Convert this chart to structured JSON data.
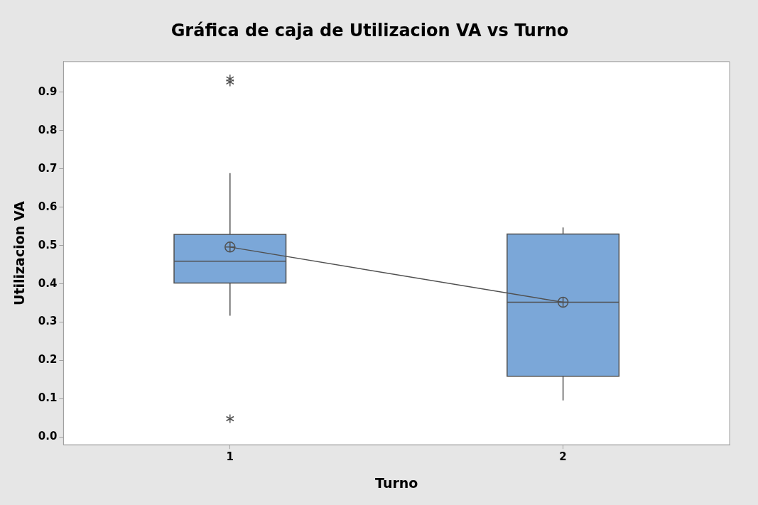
{
  "chart_data": {
    "type": "box",
    "title": "Gráfica de caja de Utilizacion VA vs Turno",
    "xlabel": "Turno",
    "ylabel": "Utilizacion VA",
    "categories": [
      "1",
      "2"
    ],
    "series": [
      {
        "color": "#7ba7d8",
        "boxes": [
          {
            "low": 0.317,
            "q1": 0.402,
            "median": 0.459,
            "q3": 0.529,
            "high": 0.689,
            "mean": 0.496,
            "outliers": [
              0.935,
              0.927,
              0.048
            ]
          },
          {
            "low": 0.096,
            "q1": 0.159,
            "median": 0.352,
            "q3": 0.53,
            "high": 0.547,
            "mean": 0.352
          }
        ]
      },
      {
        "type": "line",
        "color": "#505050",
        "values": [
          0.496,
          0.352
        ],
        "marker": "none"
      }
    ],
    "ylim": [
      -0.02,
      0.98
    ],
    "yticks": [
      {
        "value": 0,
        "label": "0.0"
      },
      0.1,
      0.2,
      0.3,
      0.4,
      0.5,
      0.6,
      0.7,
      0.8,
      0.9
    ],
    "grid": false,
    "legend": false
  }
}
